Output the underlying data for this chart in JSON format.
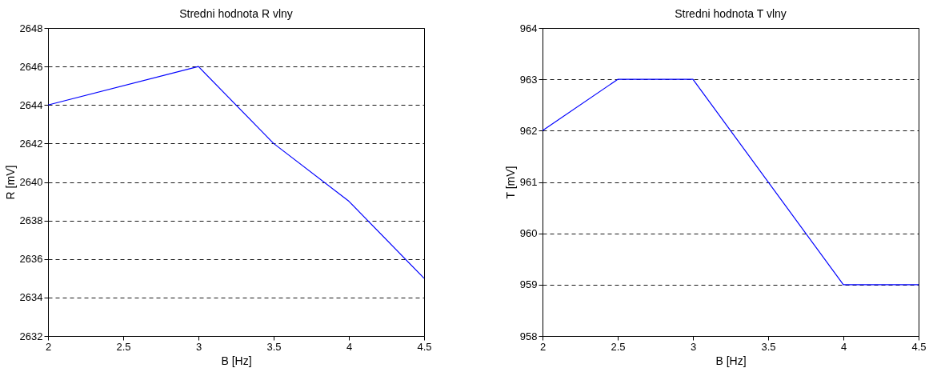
{
  "chart_data": [
    {
      "type": "line",
      "title": "Stredni hodnota R vlny",
      "xlabel": "B [Hz]",
      "ylabel": "R [mV]",
      "x": [
        2,
        3,
        3.5,
        4,
        4.5
      ],
      "series": [
        {
          "color": "#0000ff",
          "values": [
            2644,
            2646,
            2642,
            2639,
            2635
          ]
        }
      ],
      "xlim": [
        2,
        4.5
      ],
      "xticks": [
        2,
        2.5,
        3,
        3.5,
        4,
        4.5
      ],
      "ylim": [
        2632,
        2648
      ],
      "yticks": [
        2632,
        2634,
        2636,
        2638,
        2640,
        2642,
        2644,
        2646,
        2648
      ],
      "grid": "y",
      "line_style": "solid",
      "marker": "none"
    },
    {
      "type": "line",
      "title": "Stredni hodnota T vlny",
      "xlabel": "B [Hz]",
      "ylabel": "T [mV]",
      "x": [
        2,
        2.5,
        3,
        4,
        4.5
      ],
      "series": [
        {
          "color": "#0000ff",
          "values": [
            962,
            963,
            963,
            959,
            959
          ]
        }
      ],
      "xlim": [
        2,
        4.5
      ],
      "xticks": [
        2,
        2.5,
        3,
        3.5,
        4,
        4.5
      ],
      "ylim": [
        958,
        964
      ],
      "yticks": [
        958,
        959,
        960,
        961,
        962,
        963,
        964
      ],
      "grid": "y",
      "line_style": "solid",
      "marker": "none"
    }
  ]
}
